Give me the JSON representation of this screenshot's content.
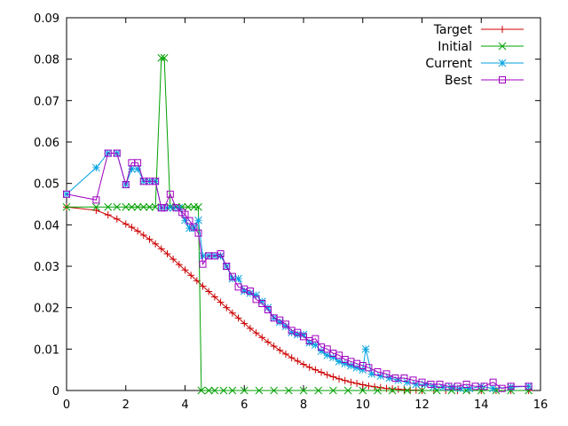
{
  "chart_data": {
    "type": "line",
    "title": "",
    "xlabel": "",
    "ylabel": "",
    "xlim": [
      0,
      16
    ],
    "ylim": [
      0,
      0.09
    ],
    "x_ticks": [
      "0",
      "2",
      "4",
      "6",
      "8",
      "10",
      "12",
      "14",
      "16"
    ],
    "y_ticks": [
      "0",
      "0.01",
      "0.02",
      "0.03",
      "0.04",
      "0.05",
      "0.06",
      "0.07",
      "0.08",
      "0.09"
    ],
    "grid": false,
    "legend_position": "top-right",
    "series": [
      {
        "name": "Target",
        "color": "#cc0000",
        "marker": "plus",
        "x": [
          0,
          1,
          1.4,
          1.7,
          2.0,
          2.2,
          2.4,
          2.6,
          2.8,
          3.0,
          3.2,
          3.4,
          3.6,
          3.8,
          4.0,
          4.2,
          4.4,
          4.6,
          4.8,
          5.0,
          5.2,
          5.4,
          5.6,
          5.8,
          6.0,
          6.2,
          6.4,
          6.6,
          6.8,
          7.0,
          7.2,
          7.4,
          7.6,
          7.8,
          8.0,
          8.2,
          8.4,
          8.6,
          8.8,
          9.0,
          9.2,
          9.4,
          9.6,
          9.8,
          10.0,
          10.2,
          10.4,
          10.6,
          10.8,
          11.0,
          11.2,
          11.4,
          11.6,
          11.8,
          12.0,
          12.4,
          12.8,
          13.2,
          13.6,
          14.0,
          14.5,
          15.0,
          15.6
        ],
        "y": [
          0.0443,
          0.0435,
          0.0424,
          0.0414,
          0.0402,
          0.0394,
          0.0385,
          0.0375,
          0.0365,
          0.0354,
          0.0342,
          0.033,
          0.0317,
          0.0304,
          0.0291,
          0.0278,
          0.0265,
          0.0252,
          0.0239,
          0.0226,
          0.0213,
          0.02,
          0.0187,
          0.0175,
          0.0162,
          0.015,
          0.0139,
          0.0128,
          0.0117,
          0.0107,
          0.0097,
          0.0088,
          0.0079,
          0.0071,
          0.0063,
          0.0056,
          0.005,
          0.0044,
          0.0038,
          0.0033,
          0.0028,
          0.0024,
          0.002,
          0.0017,
          0.0014,
          0.0011,
          0.0009,
          0.0007,
          0.0005,
          0.0004,
          0.0003,
          0.0002,
          0.0001,
          0.0001,
          0.0,
          0.0,
          0.0,
          0.0,
          0.0,
          0.0,
          0.0,
          0.0,
          0.0
        ]
      },
      {
        "name": "Initial",
        "color": "#00a000",
        "marker": "cross",
        "x": [
          0,
          1,
          1.4,
          1.7,
          2.0,
          2.2,
          2.4,
          2.6,
          2.8,
          3.0,
          3.2,
          3.3,
          3.5,
          3.7,
          3.9,
          4.1,
          4.3,
          4.45,
          4.55,
          4.8,
          5.0,
          5.3,
          5.6,
          6.0,
          6.5,
          7.0,
          7.5,
          8.0,
          8.5,
          9.0,
          9.5,
          10.0,
          10.5,
          11.0,
          11.5,
          12.0,
          12.5,
          13.0,
          13.5,
          14.0,
          14.5,
          15.0,
          15.6
        ],
        "y": [
          0.0443,
          0.0443,
          0.0443,
          0.0443,
          0.0443,
          0.0443,
          0.0443,
          0.0443,
          0.0443,
          0.0443,
          0.0803,
          0.0803,
          0.0443,
          0.0443,
          0.0443,
          0.0443,
          0.0443,
          0.0443,
          0.0,
          0.0,
          0.0,
          0.0,
          0.0,
          0.0,
          0.0,
          0.0,
          0.0,
          0.0,
          0.0,
          0.0,
          0.0,
          0.0,
          0.0,
          0.0,
          0.0,
          0.0,
          0.0,
          0.0,
          0.0,
          0.0,
          0.0,
          0.0,
          0.0
        ]
      },
      {
        "name": "Current",
        "color": "#00a0e0",
        "marker": "star",
        "x": [
          0,
          1.0,
          1.4,
          1.7,
          2.0,
          2.2,
          2.4,
          2.6,
          2.8,
          3.0,
          3.2,
          3.4,
          3.6,
          3.8,
          4.0,
          4.15,
          4.3,
          4.45,
          4.6,
          4.8,
          5.0,
          5.2,
          5.4,
          5.6,
          5.8,
          6.0,
          6.2,
          6.4,
          6.6,
          6.8,
          7.0,
          7.2,
          7.4,
          7.6,
          7.8,
          8.0,
          8.2,
          8.4,
          8.6,
          8.8,
          9.0,
          9.2,
          9.4,
          9.6,
          9.8,
          10.0,
          10.1,
          10.3,
          10.6,
          10.9,
          11.2,
          11.5,
          11.8,
          12.1,
          12.4,
          12.7,
          13.0,
          13.3,
          13.6,
          14.0,
          14.4,
          15.0,
          15.6
        ],
        "y": [
          0.0474,
          0.0538,
          0.0573,
          0.0573,
          0.0497,
          0.0535,
          0.0535,
          0.0505,
          0.0505,
          0.0505,
          0.0441,
          0.0441,
          0.0441,
          0.0441,
          0.0411,
          0.0392,
          0.0392,
          0.0411,
          0.0325,
          0.0325,
          0.0325,
          0.0325,
          0.03,
          0.027,
          0.027,
          0.024,
          0.0235,
          0.023,
          0.0215,
          0.02,
          0.0175,
          0.0165,
          0.0155,
          0.014,
          0.0135,
          0.0135,
          0.0115,
          0.011,
          0.0095,
          0.0085,
          0.008,
          0.007,
          0.0065,
          0.006,
          0.0055,
          0.005,
          0.01,
          0.004,
          0.0035,
          0.003,
          0.0025,
          0.002,
          0.0015,
          0.0015,
          0.001,
          0.0008,
          0.0008,
          0.0005,
          0.0005,
          0.001,
          0.0005,
          0.0008,
          0.001
        ]
      },
      {
        "name": "Best",
        "color": "#a000c0",
        "marker": "square",
        "x": [
          0,
          1.0,
          1.4,
          1.7,
          2.0,
          2.2,
          2.4,
          2.6,
          2.8,
          3.0,
          3.2,
          3.3,
          3.5,
          3.7,
          3.9,
          4.0,
          4.15,
          4.3,
          4.45,
          4.6,
          4.8,
          5.0,
          5.2,
          5.4,
          5.6,
          5.8,
          6.0,
          6.2,
          6.4,
          6.6,
          6.8,
          7.0,
          7.2,
          7.4,
          7.6,
          7.8,
          8.0,
          8.2,
          8.4,
          8.6,
          8.8,
          9.0,
          9.2,
          9.4,
          9.6,
          9.8,
          10.0,
          10.2,
          10.5,
          10.8,
          11.1,
          11.4,
          11.7,
          12.0,
          12.3,
          12.6,
          12.9,
          13.2,
          13.5,
          13.8,
          14.1,
          14.4,
          14.7,
          15.0,
          15.6
        ],
        "y": [
          0.0474,
          0.046,
          0.0573,
          0.0573,
          0.0497,
          0.055,
          0.055,
          0.0505,
          0.0505,
          0.0505,
          0.0441,
          0.0441,
          0.0474,
          0.0441,
          0.043,
          0.0425,
          0.041,
          0.0395,
          0.038,
          0.0305,
          0.0325,
          0.0325,
          0.033,
          0.03,
          0.0275,
          0.025,
          0.0245,
          0.024,
          0.022,
          0.021,
          0.0195,
          0.0175,
          0.017,
          0.016,
          0.0145,
          0.014,
          0.013,
          0.012,
          0.0125,
          0.0105,
          0.01,
          0.009,
          0.0085,
          0.0075,
          0.007,
          0.0065,
          0.006,
          0.0055,
          0.0045,
          0.004,
          0.003,
          0.003,
          0.0025,
          0.002,
          0.0015,
          0.0015,
          0.001,
          0.001,
          0.0015,
          0.001,
          0.001,
          0.002,
          0.0005,
          0.001,
          0.001
        ]
      }
    ]
  }
}
